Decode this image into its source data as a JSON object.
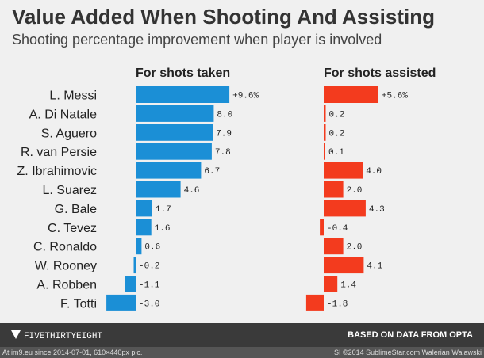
{
  "header": {
    "title": "Value Added When Shooting And Assisting",
    "subtitle": "Shooting percentage improvement when player is involved"
  },
  "footer": {
    "brand": "FIVETHIRTYEIGHT",
    "source": "BASED ON DATA FROM OPTA"
  },
  "watermark": {
    "left_prefix": "At ",
    "left_link": "im9.eu",
    "left_suffix": " since 2014-07-01, 610×440px pic.",
    "right": "SI ©2014 SublimeStar.com Walerian Walawski"
  },
  "colors": {
    "shots_taken": "#1b8fd6",
    "shots_assisted": "#f33b1e"
  },
  "chart_data": {
    "type": "bar",
    "orientation": "horizontal",
    "categories": [
      "L. Messi",
      "A. Di Natale",
      "S. Aguero",
      "R. van Persie",
      "Z. Ibrahimovic",
      "L. Suarez",
      "G. Bale",
      "C. Tevez",
      "C. Ronaldo",
      "W. Rooney",
      "A. Robben",
      "F. Totti"
    ],
    "series": [
      {
        "name": "For shots taken",
        "values": [
          9.6,
          8.0,
          7.9,
          7.8,
          6.7,
          4.6,
          1.7,
          1.6,
          0.6,
          -0.2,
          -1.1,
          -3.0
        ],
        "labels": [
          "+9.6%",
          "8.0",
          "7.9",
          "7.8",
          "6.7",
          "4.6",
          "1.7",
          "1.6",
          "0.6",
          "-0.2",
          "-1.1",
          "-3.0"
        ]
      },
      {
        "name": "For shots assisted",
        "values": [
          5.6,
          0.2,
          0.2,
          0.1,
          4.0,
          2.0,
          4.3,
          -0.4,
          2.0,
          4.1,
          1.4,
          -1.8
        ],
        "labels": [
          "+5.6%",
          "0.2",
          "0.2",
          "0.1",
          "4.0",
          "2.0",
          "4.3",
          "-0.4",
          "2.0",
          "4.1",
          "1.4",
          "-1.8"
        ]
      }
    ]
  }
}
